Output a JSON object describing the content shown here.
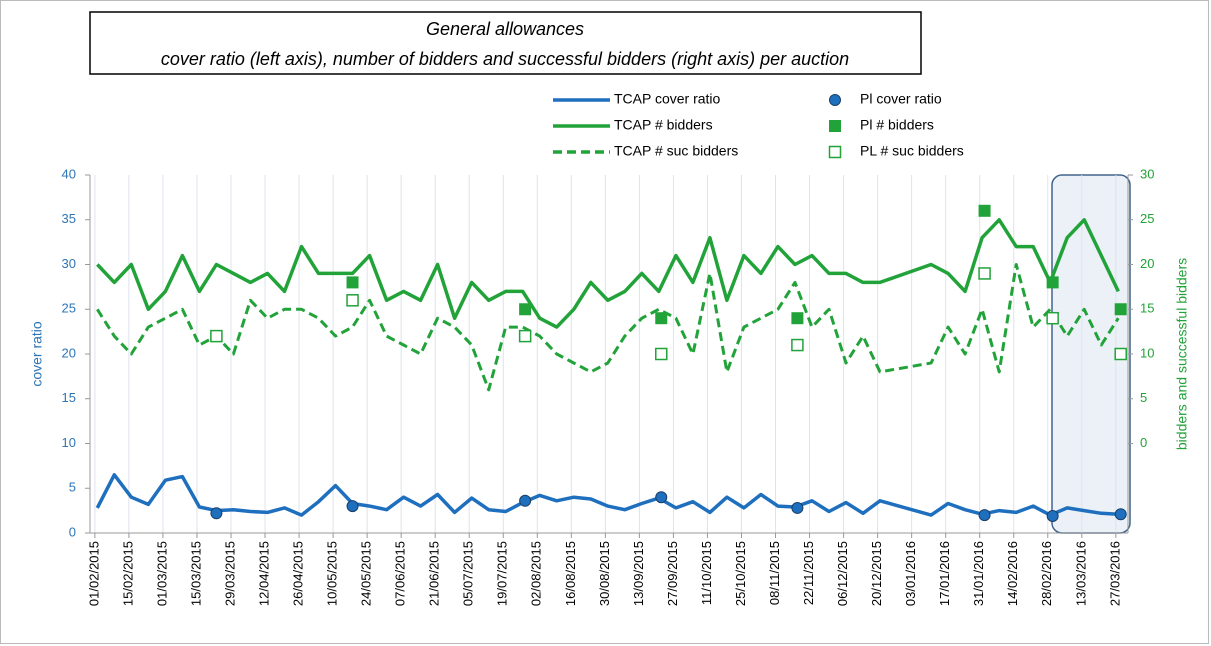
{
  "chart_data": {
    "type": "line",
    "title": "General allowances",
    "subtitle": "cover ratio (left axis), number of bidders and successful bidders (right axis) per auction",
    "y_label": "cover ratio",
    "y2_label": "bidders and successful bidders",
    "xlim": [
      "30/01/2015",
      "01/04/2016"
    ],
    "xticks": [
      "01/02/2015",
      "15/02/2015",
      "01/03/2015",
      "15/03/2015",
      "29/03/2015",
      "12/04/2015",
      "26/04/2015",
      "10/05/2015",
      "24/05/2015",
      "07/06/2015",
      "21/06/2015",
      "05/07/2015",
      "19/07/2015",
      "02/08/2015",
      "16/08/2015",
      "30/08/2015",
      "13/09/2015",
      "27/09/2015",
      "11/10/2015",
      "25/10/2015",
      "08/11/2015",
      "22/11/2015",
      "06/12/2015",
      "20/12/2015",
      "03/01/2016",
      "17/01/2016",
      "31/01/2016",
      "14/02/2016",
      "28/02/2016",
      "13/03/2016",
      "27/03/2016"
    ],
    "ylim": [
      0,
      40
    ],
    "yticks": [
      0,
      5,
      10,
      15,
      20,
      25,
      30,
      35,
      40
    ],
    "y2lim": [
      -10,
      30
    ],
    "y2ticks": [
      0,
      5,
      10,
      15,
      20,
      25,
      30
    ],
    "grid": "x",
    "x": [
      "02/02/2015",
      "09/02/2015",
      "16/02/2015",
      "23/02/2015",
      "02/03/2015",
      "09/03/2015",
      "16/03/2015",
      "23/03/2015",
      "30/03/2015",
      "06/04/2015",
      "13/04/2015",
      "20/04/2015",
      "27/04/2015",
      "04/05/2015",
      "11/05/2015",
      "18/05/2015",
      "25/05/2015",
      "01/06/2015",
      "08/06/2015",
      "15/06/2015",
      "22/06/2015",
      "29/06/2015",
      "06/07/2015",
      "13/07/2015",
      "20/07/2015",
      "27/07/2015",
      "03/08/2015",
      "10/08/2015",
      "17/08/2015",
      "24/08/2015",
      "31/08/2015",
      "07/09/2015",
      "14/09/2015",
      "21/09/2015",
      "28/09/2015",
      "05/10/2015",
      "12/10/2015",
      "19/10/2015",
      "26/10/2015",
      "02/11/2015",
      "09/11/2015",
      "16/11/2015",
      "23/11/2015",
      "30/11/2015",
      "07/12/2015",
      "14/12/2015",
      "21/12/2015",
      "11/01/2016",
      "18/01/2016",
      "25/01/2016",
      "01/02/2016",
      "08/02/2016",
      "15/02/2016",
      "22/02/2016",
      "29/02/2016",
      "07/03/2016",
      "14/03/2016",
      "21/03/2016",
      "28/03/2016"
    ],
    "series": [
      {
        "name": "TCAP cover ratio",
        "color": "#1f6fbf",
        "axis": "y",
        "line": "solid",
        "values": [
          2.8,
          6.5,
          4.0,
          3.2,
          5.9,
          6.3,
          2.9,
          2.5,
          2.6,
          2.4,
          2.3,
          2.8,
          2.0,
          3.5,
          5.3,
          3.3,
          3.0,
          2.6,
          4.0,
          3.0,
          4.3,
          2.3,
          3.9,
          2.6,
          2.4,
          3.4,
          4.2,
          3.6,
          4.0,
          3.8,
          3.0,
          2.6,
          3.3,
          3.9,
          2.8,
          3.5,
          2.3,
          4.0,
          2.8,
          4.3,
          3.0,
          2.9,
          3.6,
          2.4,
          3.4,
          2.2,
          3.6,
          2.0,
          3.3,
          2.6,
          2.1,
          2.5,
          2.3,
          3.0,
          2.0,
          2.8,
          2.5,
          2.2,
          2.1
        ]
      },
      {
        "name": "TCAP # bidders",
        "color": "#22a33a",
        "axis": "y2",
        "line": "solid",
        "values": [
          20,
          18,
          20,
          15,
          17,
          21,
          17,
          20,
          19,
          18,
          19,
          17,
          22,
          19,
          19,
          19,
          21,
          16,
          17,
          16,
          20,
          14,
          18,
          16,
          17,
          17,
          14,
          13,
          15,
          18,
          16,
          17,
          19,
          17,
          21,
          18,
          23,
          16,
          21,
          19,
          22,
          20,
          21,
          19,
          19,
          18,
          18,
          20,
          19,
          17,
          23,
          25,
          22,
          22,
          18,
          23,
          25,
          21,
          17
        ]
      },
      {
        "name": "TCAP # suc bidders",
        "color": "#22a33a",
        "axis": "y2",
        "line": "dashed",
        "values": [
          15,
          12,
          10,
          13,
          14,
          15,
          11,
          12,
          10,
          16,
          14,
          15,
          15,
          14,
          12,
          13,
          16,
          12,
          11,
          10,
          14,
          13,
          11,
          6,
          13,
          13,
          12,
          10,
          9,
          8,
          9,
          12,
          14,
          15,
          14,
          10,
          19,
          8,
          13,
          14,
          15,
          18,
          13,
          15,
          9,
          12,
          8,
          9,
          13,
          10,
          15,
          8,
          20,
          13,
          15,
          12,
          15,
          11,
          14
        ]
      },
      {
        "name": "Pl cover ratio",
        "color": "#1f6fbf",
        "axis": "y",
        "marker": "circle",
        "x": [
          "23/03/2015",
          "18/05/2015",
          "28/07/2015",
          "22/09/2015",
          "17/11/2015",
          "02/02/2016",
          "01/03/2016",
          "29/03/2016"
        ],
        "values": [
          2.2,
          3.0,
          3.6,
          4.0,
          2.8,
          2.0,
          1.9,
          2.1
        ]
      },
      {
        "name": "Pl # bidders",
        "color": "#22a33a",
        "axis": "y2",
        "marker": "square",
        "x": [
          "23/03/2015",
          "18/05/2015",
          "28/07/2015",
          "22/09/2015",
          "17/11/2015",
          "02/02/2016",
          "01/03/2016",
          "29/03/2016"
        ],
        "values": [
          12,
          18,
          15,
          14,
          14,
          26,
          18,
          15
        ]
      },
      {
        "name": "PL # suc bidders",
        "color": "#22a33a",
        "axis": "y2",
        "marker": "square-open",
        "x": [
          "23/03/2015",
          "18/05/2015",
          "28/07/2015",
          "22/09/2015",
          "17/11/2015",
          "02/02/2016",
          "01/03/2016",
          "29/03/2016"
        ],
        "values": [
          12,
          16,
          12,
          10,
          11,
          19,
          14,
          10
        ]
      }
    ]
  }
}
